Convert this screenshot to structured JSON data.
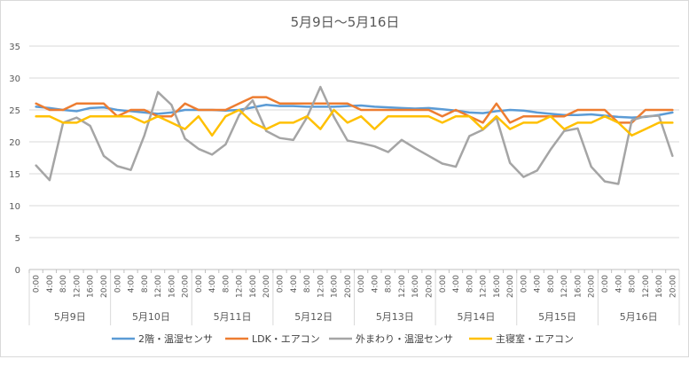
{
  "chart_data": {
    "type": "line",
    "title": "5月9日～5月16日",
    "xlabel": "",
    "ylabel": "",
    "ylim": [
      0,
      35
    ],
    "yticks": [
      0,
      5,
      10,
      15,
      20,
      25,
      30,
      35
    ],
    "grid": true,
    "legend_position": "bottom",
    "days": [
      "5月9日",
      "5月10日",
      "5月11日",
      "5月12日",
      "5月13日",
      "5月14日",
      "5月15日",
      "5月16日"
    ],
    "times": [
      "0:00",
      "4:00",
      "8:00",
      "12:00",
      "16:00",
      "20:00"
    ],
    "series": [
      {
        "name": "2階・温湿センサ",
        "color": "#5b9bd5",
        "values": [
          25.5,
          25.3,
          25.0,
          24.8,
          25.3,
          25.4,
          25.0,
          24.8,
          24.6,
          24.4,
          24.6,
          25.0,
          25.0,
          25.0,
          24.9,
          25.0,
          25.4,
          25.8,
          25.6,
          25.6,
          25.5,
          25.5,
          25.5,
          25.6,
          25.7,
          25.5,
          25.4,
          25.3,
          25.2,
          25.3,
          25.1,
          24.9,
          24.6,
          24.5,
          24.8,
          25.0,
          24.9,
          24.6,
          24.4,
          24.2,
          24.2,
          24.3,
          24.1,
          23.9,
          23.8,
          23.9,
          24.2,
          24.6
        ]
      },
      {
        "name": "LDK・エアコン",
        "color": "#ed7d31",
        "values": [
          26,
          25,
          25,
          26,
          26,
          26,
          24,
          25,
          25,
          24,
          24,
          26,
          25,
          25,
          25,
          26,
          27,
          27,
          26,
          26,
          26,
          26,
          26,
          26,
          25,
          25,
          25,
          25,
          25,
          25,
          24,
          25,
          24,
          23,
          26,
          23,
          24,
          24,
          24,
          24,
          25,
          25,
          25,
          23,
          23,
          25,
          25,
          25
        ]
      },
      {
        "name": "外まわり・温湿センサ",
        "color": "#a5a5a5",
        "values": [
          16.3,
          14.0,
          23.0,
          23.8,
          22.5,
          17.8,
          16.2,
          15.6,
          21.0,
          27.8,
          25.8,
          20.5,
          18.9,
          18.0,
          19.6,
          24.2,
          26.5,
          21.7,
          20.6,
          20.3,
          23.8,
          28.6,
          23.9,
          20.2,
          19.8,
          19.3,
          18.4,
          20.3,
          19.0,
          17.8,
          16.6,
          16.1,
          20.9,
          21.9,
          23.8,
          16.7,
          14.5,
          15.5,
          18.8,
          21.7,
          22.1,
          16.1,
          13.8,
          13.4,
          23.4,
          24.0,
          24.1,
          17.8
        ]
      },
      {
        "name": "主寝室・エアコン",
        "color": "#ffc000",
        "values": [
          24,
          24,
          23,
          23,
          24,
          24,
          24,
          24,
          23,
          24,
          23,
          22,
          24,
          21,
          24,
          25,
          23,
          22,
          23,
          23,
          24,
          22,
          25,
          23,
          24,
          22,
          24,
          24,
          24,
          24,
          23,
          24,
          24,
          22,
          24,
          22,
          23,
          23,
          24,
          22,
          23,
          23,
          24,
          23,
          21,
          22,
          23,
          23
        ]
      }
    ]
  }
}
